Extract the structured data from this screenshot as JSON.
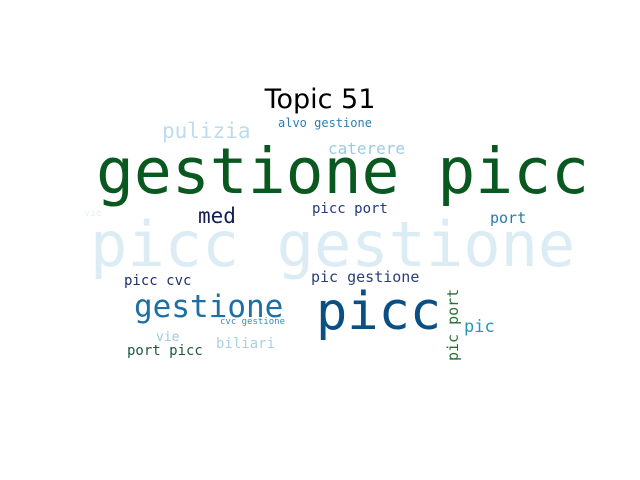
{
  "title": "Topic 51",
  "words": [
    {
      "text": "picc gestione",
      "color": "#dcecf5"
    },
    {
      "text": "gestione picc",
      "color": "#08581f"
    },
    {
      "text": "picc",
      "color": "#0a4f84"
    },
    {
      "text": "gestione",
      "color": "#1e6fa3"
    },
    {
      "text": "pulizia",
      "color": "#bcdced"
    },
    {
      "text": "alvo gestione",
      "color": "#2d7fb0"
    },
    {
      "text": "caterere",
      "color": "#9ccbe1"
    },
    {
      "text": "med",
      "color": "#141c52"
    },
    {
      "text": "picc port",
      "color": "#243a78"
    },
    {
      "text": "port",
      "color": "#2a7aa8"
    },
    {
      "text": "picc cvc",
      "color": "#1e2f6b"
    },
    {
      "text": "pic gestione",
      "color": "#2b3f7c"
    },
    {
      "text": "cvc gestione",
      "color": "#3a8ab8"
    },
    {
      "text": "vie",
      "color": "#9cc9de"
    },
    {
      "text": "biliari",
      "color": "#a9d1e5"
    },
    {
      "text": "port picc",
      "color": "#1f5a3e"
    },
    {
      "text": "pic port",
      "color": "#2a6e35"
    },
    {
      "text": "pic",
      "color": "#2695b4"
    },
    {
      "text": "vie",
      "color": "#e8f0f4"
    }
  ]
}
